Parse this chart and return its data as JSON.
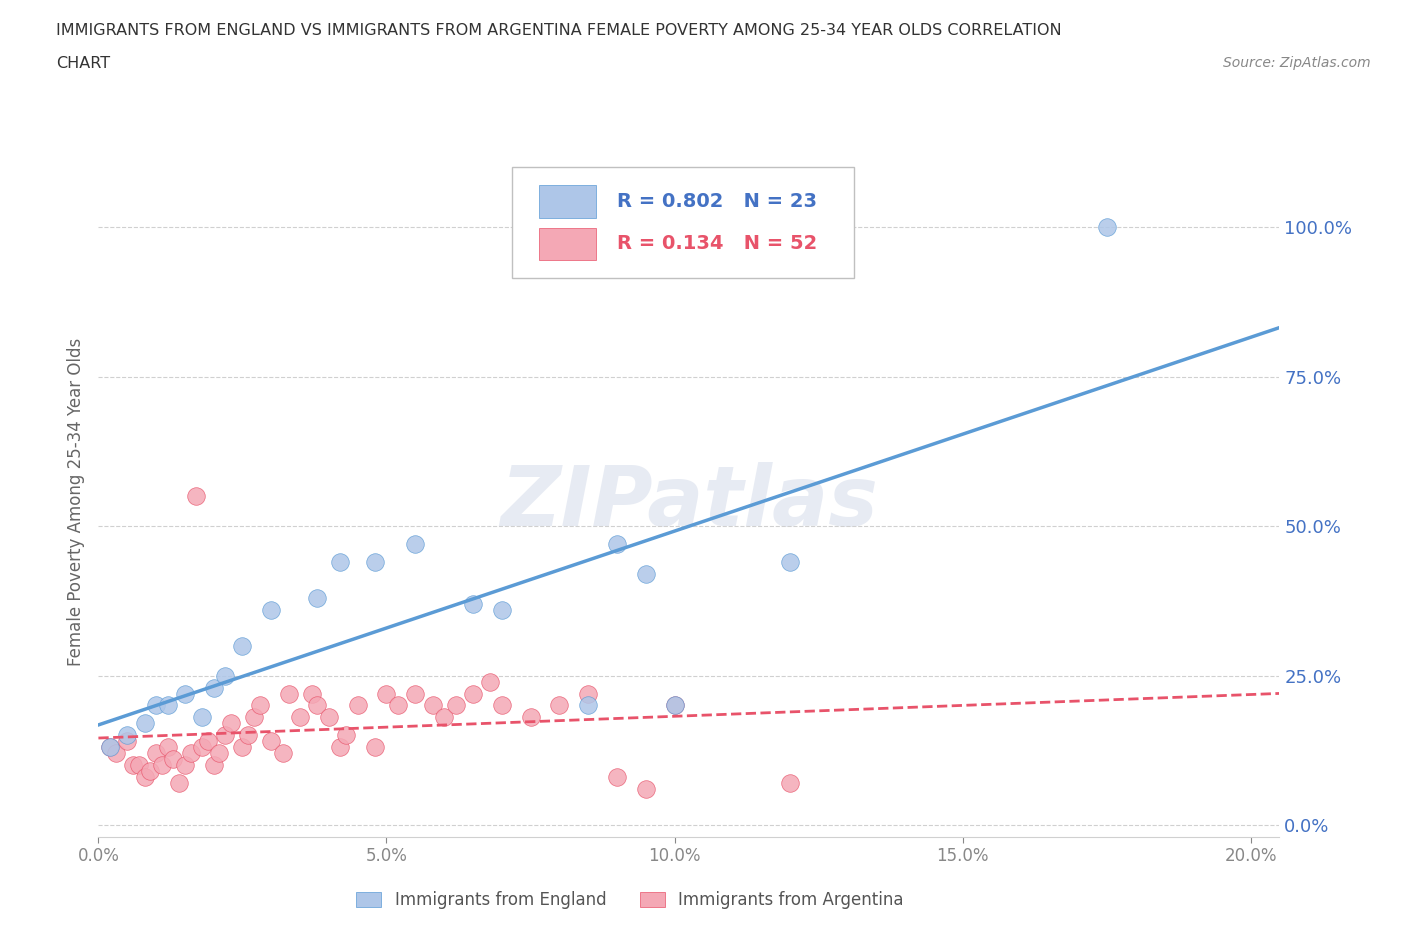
{
  "title_line1": "IMMIGRANTS FROM ENGLAND VS IMMIGRANTS FROM ARGENTINA FEMALE POVERTY AMONG 25-34 YEAR OLDS CORRELATION",
  "title_line2": "CHART",
  "source": "Source: ZipAtlas.com",
  "ylabel": "Female Poverty Among 25-34 Year Olds",
  "xlim": [
    0.0,
    0.205
  ],
  "ylim": [
    -0.02,
    1.1
  ],
  "yticks": [
    0.0,
    0.25,
    0.5,
    0.75,
    1.0
  ],
  "ytick_labels": [
    "0.0%",
    "25.0%",
    "50.0%",
    "75.0%",
    "100.0%"
  ],
  "xticks": [
    0.0,
    0.05,
    0.1,
    0.15,
    0.2
  ],
  "xtick_labels": [
    "0.0%",
    "5.0%",
    "10.0%",
    "15.0%",
    "20.0%"
  ],
  "watermark": "ZIPatlas",
  "england_color": "#5b9bd5",
  "england_scatter_color": "#aec6e8",
  "argentina_color": "#e8536a",
  "argentina_scatter_color": "#f4a8b5",
  "england_R": 0.802,
  "england_N": 23,
  "argentina_R": 0.134,
  "argentina_N": 52,
  "england_scatter_x": [
    0.002,
    0.005,
    0.008,
    0.01,
    0.012,
    0.015,
    0.018,
    0.02,
    0.022,
    0.025,
    0.03,
    0.038,
    0.042,
    0.048,
    0.055,
    0.065,
    0.07,
    0.085,
    0.09,
    0.095,
    0.1,
    0.12,
    0.175
  ],
  "england_scatter_y": [
    0.13,
    0.15,
    0.17,
    0.2,
    0.2,
    0.22,
    0.18,
    0.23,
    0.25,
    0.3,
    0.36,
    0.38,
    0.44,
    0.44,
    0.47,
    0.37,
    0.36,
    0.2,
    0.47,
    0.42,
    0.2,
    0.44,
    1.0
  ],
  "argentina_scatter_x": [
    0.002,
    0.003,
    0.005,
    0.006,
    0.007,
    0.008,
    0.009,
    0.01,
    0.011,
    0.012,
    0.013,
    0.014,
    0.015,
    0.016,
    0.017,
    0.018,
    0.019,
    0.02,
    0.021,
    0.022,
    0.023,
    0.025,
    0.026,
    0.027,
    0.028,
    0.03,
    0.032,
    0.033,
    0.035,
    0.037,
    0.038,
    0.04,
    0.042,
    0.043,
    0.045,
    0.048,
    0.05,
    0.052,
    0.055,
    0.058,
    0.06,
    0.062,
    0.065,
    0.068,
    0.07,
    0.075,
    0.08,
    0.085,
    0.09,
    0.095,
    0.1,
    0.12
  ],
  "argentina_scatter_y": [
    0.13,
    0.12,
    0.14,
    0.1,
    0.1,
    0.08,
    0.09,
    0.12,
    0.1,
    0.13,
    0.11,
    0.07,
    0.1,
    0.12,
    0.55,
    0.13,
    0.14,
    0.1,
    0.12,
    0.15,
    0.17,
    0.13,
    0.15,
    0.18,
    0.2,
    0.14,
    0.12,
    0.22,
    0.18,
    0.22,
    0.2,
    0.18,
    0.13,
    0.15,
    0.2,
    0.13,
    0.22,
    0.2,
    0.22,
    0.2,
    0.18,
    0.2,
    0.22,
    0.24,
    0.2,
    0.18,
    0.2,
    0.22,
    0.08,
    0.06,
    0.2,
    0.07
  ],
  "background_color": "#ffffff",
  "grid_color": "#d0d0d0",
  "tick_color": "#4472c4",
  "legend_bbox_color": "#4472c4",
  "legend_border_color": "#c0c0c0"
}
